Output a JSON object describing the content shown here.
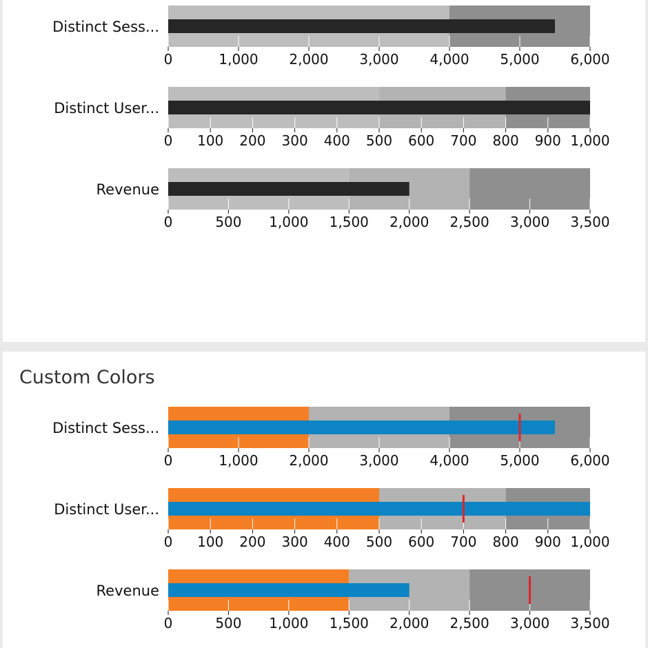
{
  "panels": [
    {
      "title": "",
      "chart_data": {
        "type": "bullet",
        "colors": {
          "range_light": "#bdbdbd",
          "range_mid": "#b3b3b3",
          "range_dark": "#8f8f8f",
          "measure": "#262626",
          "marker": "#e0242b",
          "grid": "#ffffff"
        },
        "rows": [
          {
            "label": "Distinct Sess...",
            "ranges": [
              4000,
              6000
            ],
            "measure": 5500,
            "ticks": [
              0,
              1000,
              2000,
              3000,
              4000,
              5000,
              6000
            ],
            "tick_labels": [
              "0",
              "1,000",
              "2,000",
              "3,000",
              "4,000",
              "5,000",
              "6,000"
            ]
          },
          {
            "label": "Distinct User...",
            "ranges": [
              500,
              800,
              1000
            ],
            "measure": 1000,
            "ticks": [
              0,
              100,
              200,
              300,
              400,
              500,
              600,
              700,
              800,
              900,
              1000
            ],
            "tick_labels": [
              "0",
              "100",
              "200",
              "300",
              "400",
              "500",
              "600",
              "700",
              "800",
              "900",
              "1,000"
            ]
          },
          {
            "label": "Revenue",
            "ranges": [
              1500,
              2500,
              3500
            ],
            "measure": 2000,
            "ticks": [
              0,
              500,
              1000,
              1500,
              2000,
              2500,
              3000,
              3500
            ],
            "tick_labels": [
              "0",
              "500",
              "1,000",
              "1,500",
              "2,000",
              "2,500",
              "3,000",
              "3,500"
            ]
          }
        ]
      }
    },
    {
      "title": "Custom Colors",
      "chart_data": {
        "type": "bullet",
        "colors": {
          "range_first": "#f57f24",
          "range_light": "#bdbdbd",
          "range_mid": "#b3b3b3",
          "range_dark": "#8f8f8f",
          "measure": "#0d84c4",
          "marker": "#e0242b",
          "grid": "#ffffff"
        },
        "rows": [
          {
            "label": "Distinct Sess...",
            "ranges": [
              2000,
              4000,
              6000
            ],
            "measure": 5500,
            "marker": 5000,
            "ticks": [
              0,
              1000,
              2000,
              3000,
              4000,
              5000,
              6000
            ],
            "tick_labels": [
              "0",
              "1,000",
              "2,000",
              "3,000",
              "4,000",
              "5,000",
              "6,000"
            ]
          },
          {
            "label": "Distinct User...",
            "ranges": [
              500,
              800,
              1000
            ],
            "measure": 1000,
            "marker": 700,
            "ticks": [
              0,
              100,
              200,
              300,
              400,
              500,
              600,
              700,
              800,
              900,
              1000
            ],
            "tick_labels": [
              "0",
              "100",
              "200",
              "300",
              "400",
              "500",
              "600",
              "700",
              "800",
              "900",
              "1,000"
            ]
          },
          {
            "label": "Revenue",
            "ranges": [
              1500,
              2500,
              3500
            ],
            "measure": 2000,
            "marker": 3000,
            "ticks": [
              0,
              500,
              1000,
              1500,
              2000,
              2500,
              3000,
              3500
            ],
            "tick_labels": [
              "0",
              "500",
              "1,000",
              "1,500",
              "2,000",
              "2,500",
              "3,000",
              "3,500"
            ]
          }
        ]
      }
    }
  ]
}
